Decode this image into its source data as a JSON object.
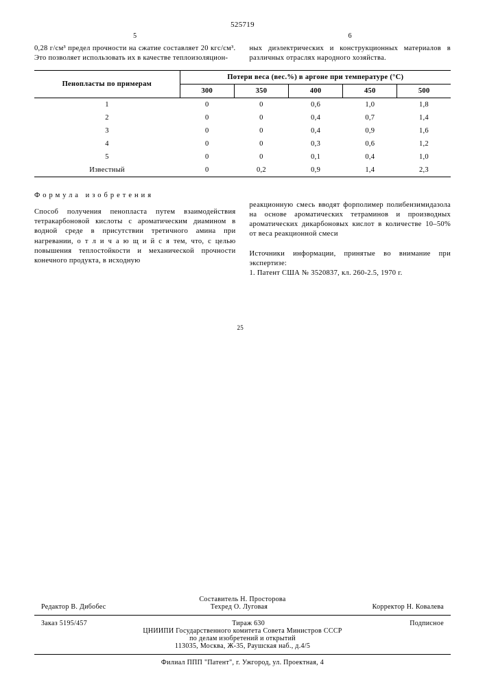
{
  "patent_number": "525719",
  "left_col_num": "5",
  "right_col_num": "6",
  "top_left_text": "0,28 г/см³ предел прочности на сжатие составляет 20 кгс/см³. Это позволяет использовать их в качестве теплоизоляцион-",
  "top_right_text": "ных диэлектрических и конструкционных материалов в различных отраслях народного хозяйства.",
  "table": {
    "row_header": "Пенопласты по примерам",
    "group_header": "Потери веса (вес.%) в аргоне при температуре (°С)",
    "temps": [
      "300",
      "350",
      "400",
      "450",
      "500"
    ],
    "rows": [
      {
        "label": "1",
        "vals": [
          "0",
          "0",
          "0,6",
          "1,0",
          "1,8"
        ]
      },
      {
        "label": "2",
        "vals": [
          "0",
          "0",
          "0,4",
          "0,7",
          "1,4"
        ]
      },
      {
        "label": "3",
        "vals": [
          "0",
          "0",
          "0,4",
          "0,9",
          "1,6"
        ]
      },
      {
        "label": "4",
        "vals": [
          "0",
          "0",
          "0,3",
          "0,6",
          "1,2"
        ]
      },
      {
        "label": "5",
        "vals": [
          "0",
          "0",
          "0,1",
          "0,4",
          "1,0"
        ]
      },
      {
        "label": "Известный",
        "vals": [
          "0",
          "0,2",
          "0,9",
          "1,4",
          "2,3"
        ]
      }
    ]
  },
  "formula_title": "Формула изобретения",
  "left_body": "Способ получения пенопласта путем взаимодействия тетракарбоновой кислоты с ароматическим диамином в водной среде в присутствии третичного амина при нагревании, о т л и ч а ю щ и й с я тем, что, с целью повышения теплостойкости и механической прочности конечного продукта, в исходную",
  "inline_25": "25",
  "right_body_1": "реакционную смесь вводят форполимер полибензимидазола на основе ароматических тетраминов и производных ароматических дикарбоновых кислот в количестве 10–50% от веса реакционной смеси",
  "right_body_2": "Источники информации, принятые во внимание при экспертизе:",
  "right_body_3": "1. Патент США № 3520837, кл. 260-2.5, 1970 г.",
  "footer": {
    "compiler": "Составитель Н. Просторова",
    "editor": "Редактор В. Дибобес",
    "techred": "Техред О. Луговая",
    "corrector": "Корректор Н. Ковалева",
    "order": "Заказ 5195/457",
    "tirazh": "Тираж 630",
    "sub": "Подписное",
    "org1": "ЦНИИПИ Государственного комитета Совета Министров СССР",
    "org2": "по делам изобретений и открытий",
    "addr": "113035, Москва, Ж-35, Раушская наб., д.4/5",
    "branch": "Филиал ППП \"Патент\", г. Ужгород, ул. Проектная, 4"
  }
}
